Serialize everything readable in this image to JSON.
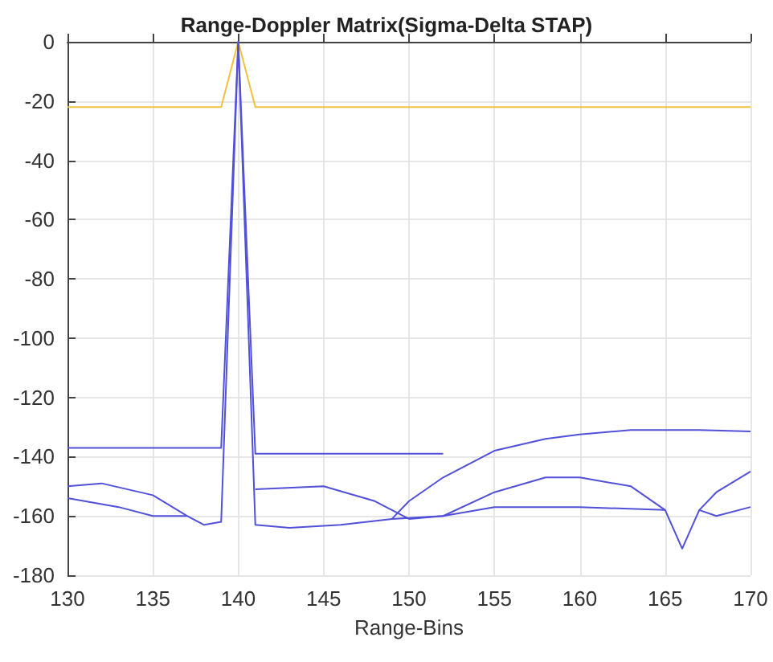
{
  "chart_data": {
    "type": "line",
    "title": "Range-Doppler Matrix(Sigma-Delta STAP)",
    "xlabel": "Range-Bins",
    "xlim": [
      130,
      170
    ],
    "xticks": [
      130,
      135,
      140,
      145,
      150,
      155,
      160,
      165,
      170
    ],
    "ylim": [
      -180,
      0
    ],
    "yticks": [
      -180,
      -160,
      -140,
      -120,
      -100,
      -80,
      -60,
      -40,
      -20,
      0
    ],
    "grid": true,
    "marker": "none",
    "line_style": "solid",
    "series": [
      {
        "color": "#f0c040",
        "x": [
          130,
          139,
          140,
          141,
          170
        ],
        "values": [
          -22,
          -22,
          0,
          -22,
          -22
        ]
      },
      {
        "color": "#5050d8",
        "x": [
          130,
          139,
          140,
          141,
          152
        ],
        "values": [
          -137,
          -137,
          0,
          -139,
          -139
        ]
      },
      {
        "color": "#5050d8",
        "x": [
          149,
          150,
          152,
          155,
          158,
          160,
          163,
          167,
          170
        ],
        "values": [
          -161,
          -155,
          -147,
          -138,
          -134,
          -132.5,
          -131,
          -131,
          -131.5
        ]
      },
      {
        "color": "#5050d8",
        "x": [
          130,
          133,
          135,
          137,
          138,
          139,
          140,
          141,
          143,
          146,
          149,
          152,
          155,
          160,
          165,
          166,
          167,
          168,
          170
        ],
        "values": [
          -154,
          -157,
          -160,
          -160,
          -163,
          -162,
          0,
          -163,
          -164,
          -163,
          -161,
          -160,
          -157,
          -157,
          -158,
          -171,
          -158,
          -160,
          -157
        ]
      },
      {
        "color": "#5050d8",
        "x": [
          130,
          132,
          135,
          137,
          138,
          141,
          145,
          148,
          150,
          152,
          155,
          158,
          160,
          163,
          165,
          166,
          167,
          168,
          170
        ],
        "values": [
          -150,
          -149,
          -153,
          -160,
          null,
          -151,
          -150,
          -155,
          -161,
          -160,
          -152,
          -147,
          -147,
          -150,
          -158,
          null,
          -158,
          -152,
          -145
        ]
      }
    ]
  }
}
